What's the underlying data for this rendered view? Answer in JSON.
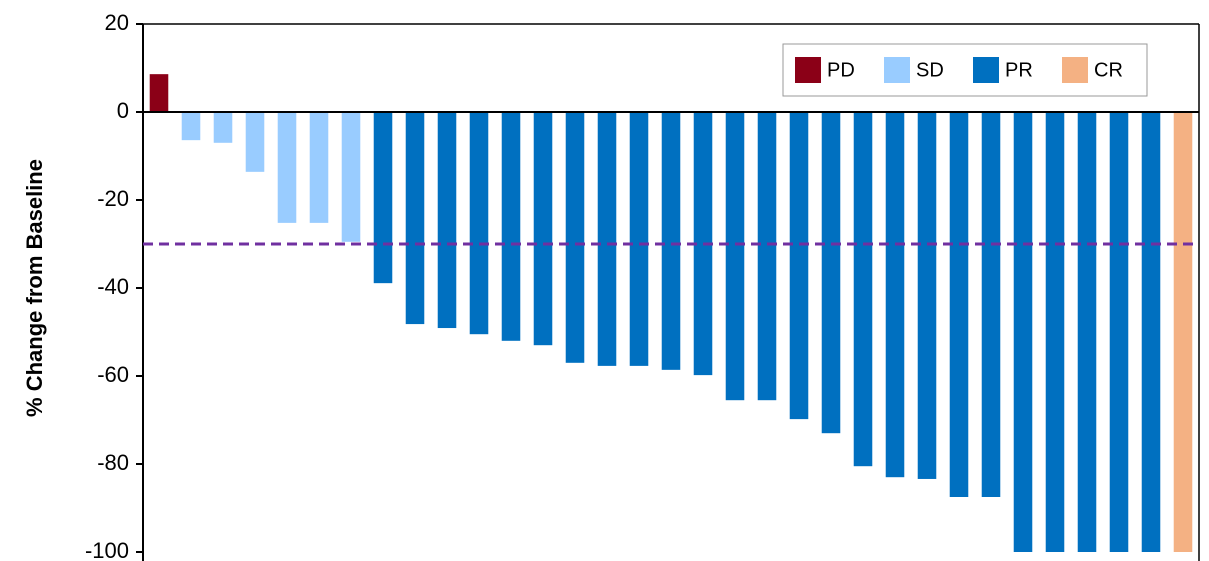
{
  "chart_data": {
    "type": "bar",
    "y_label": "% Change from Baseline",
    "categories": [
      null,
      null,
      null,
      null,
      null,
      null,
      null,
      null,
      null,
      null,
      null,
      null,
      null,
      null,
      null,
      null,
      null,
      null,
      null,
      null,
      null,
      null,
      null,
      null,
      null,
      null,
      null,
      null,
      null,
      null,
      null,
      null,
      null
    ],
    "series": [
      {
        "name": "PD",
        "color": "#8b0017",
        "values": [
          8.6,
          null,
          null,
          null,
          null,
          null,
          null,
          null,
          null,
          null,
          null,
          null,
          null,
          null,
          null,
          null,
          null,
          null,
          null,
          null,
          null,
          null,
          null,
          null,
          null,
          null,
          null,
          null,
          null,
          null,
          null,
          null,
          null
        ]
      },
      {
        "name": "SD",
        "color": "#99ccff",
        "values": [
          null,
          -6.4,
          -7,
          -13.6,
          -25.2,
          -25.2,
          -29.5,
          null,
          null,
          null,
          null,
          null,
          null,
          null,
          null,
          null,
          null,
          null,
          null,
          null,
          null,
          null,
          null,
          null,
          null,
          null,
          null,
          null,
          null,
          null,
          null,
          null,
          null
        ]
      },
      {
        "name": "PR",
        "color": "#0070c0",
        "values": [
          null,
          null,
          null,
          null,
          null,
          null,
          null,
          -38.9,
          -48.2,
          -49.1,
          -50.5,
          -52,
          -53,
          -57,
          -57.7,
          -57.7,
          -58.6,
          -59.8,
          -65.5,
          -65.5,
          -69.8,
          -73,
          -80.5,
          -83,
          -83.4,
          -87.5,
          -87.5,
          -100,
          -100,
          -100,
          -100,
          -100,
          null
        ]
      },
      {
        "name": "CR",
        "color": "#f4b183",
        "values": [
          null,
          null,
          null,
          null,
          null,
          null,
          null,
          null,
          null,
          null,
          null,
          null,
          null,
          null,
          null,
          null,
          null,
          null,
          null,
          null,
          null,
          null,
          null,
          null,
          null,
          null,
          null,
          null,
          null,
          null,
          null,
          null,
          -100
        ]
      }
    ],
    "reference_line": {
      "value": -30,
      "color": "#7030a0"
    },
    "ylim": [
      -100,
      20
    ],
    "yticks": [
      -100,
      -80,
      -60,
      -40,
      -20,
      0,
      20
    ],
    "legend": "top-right"
  }
}
